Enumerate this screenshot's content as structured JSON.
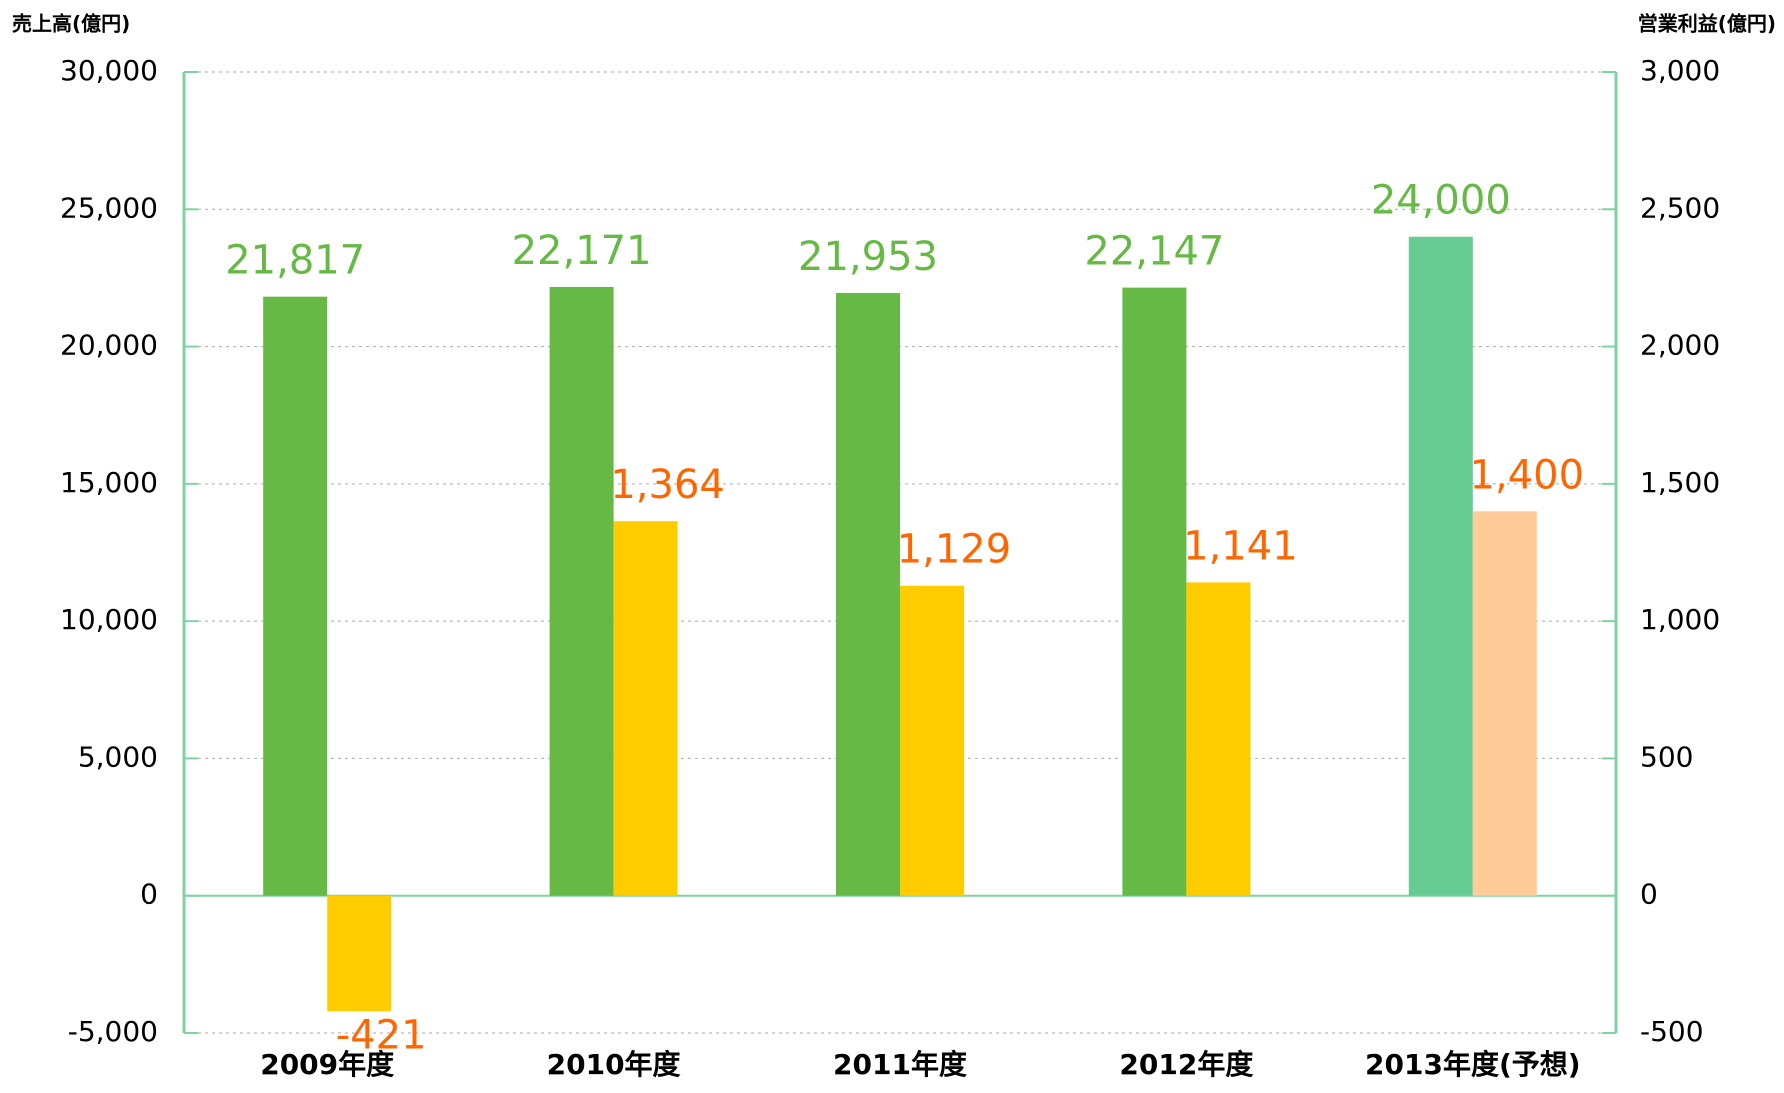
{
  "chart_data": {
    "type": "bar",
    "y_label": "売上高(億円)",
    "y2_label": "営業利益(億円)",
    "categories": [
      "2009年度",
      "2010年度",
      "2011年度",
      "2012年度",
      "2013年度(予想)"
    ],
    "series": [
      {
        "name": "売上高",
        "axis": "y",
        "colors": [
          "#66b944",
          "#66b944",
          "#66b944",
          "#66b944",
          "#66cc94"
        ],
        "label_color": "#66b944",
        "values": [
          21817,
          22171,
          21953,
          22147,
          24000
        ],
        "value_labels": [
          "21,817",
          "22,171",
          "21,953",
          "22,147",
          "24,000"
        ]
      },
      {
        "name": "営業利益",
        "axis": "y2",
        "colors": [
          "#ffcc00",
          "#ffcc00",
          "#ffcc00",
          "#ffcc00",
          "#ffcc99"
        ],
        "label_color": "#ff6600",
        "values": [
          -421,
          1364,
          1129,
          1141,
          1400
        ],
        "value_labels": [
          "-421",
          "1,364",
          "1,129",
          "1,141",
          "1,400"
        ]
      }
    ],
    "ylim": [
      -5000,
      30000
    ],
    "yticks": [
      {
        "value": -5000,
        "label": "-5,000"
      },
      0,
      {
        "value": 5000,
        "label": "5,000"
      },
      {
        "value": 10000,
        "label": "10,000"
      },
      {
        "value": 15000,
        "label": "15,000"
      },
      {
        "value": 20000,
        "label": "20,000"
      },
      {
        "value": 25000,
        "label": "25,000"
      },
      {
        "value": 30000,
        "label": "30,000"
      }
    ],
    "y2lim": [
      -500,
      3000
    ],
    "y2ticks": [
      -500,
      0,
      500,
      {
        "value": 1000,
        "label": "1,000"
      },
      {
        "value": 1500,
        "label": "1,500"
      },
      {
        "value": 2000,
        "label": "2,000"
      },
      {
        "value": 2500,
        "label": "2,500"
      },
      {
        "value": 3000,
        "label": "3,000"
      }
    ],
    "grid": true
  }
}
